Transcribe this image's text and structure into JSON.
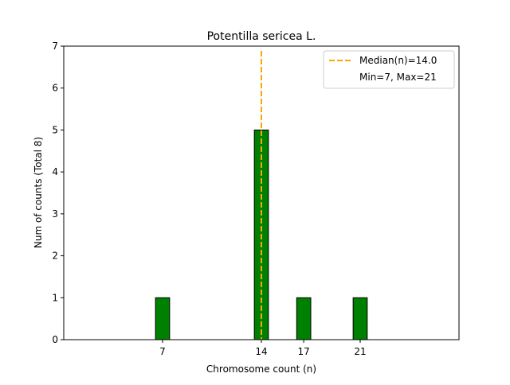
{
  "chart_data": {
    "type": "bar",
    "title": "Potentilla sericea L.",
    "xlabel": "Chromosome count (n)",
    "ylabel": "Num of counts      (Total 8)",
    "xlim": [
      0,
      28
    ],
    "ylim": [
      0,
      7
    ],
    "x_ticks": [
      7,
      14,
      17,
      21
    ],
    "y_ticks": [
      0,
      1,
      2,
      3,
      4,
      5,
      6,
      7
    ],
    "bar_width": 1,
    "bars": [
      {
        "x": 7,
        "value": 1
      },
      {
        "x": 14,
        "value": 5
      },
      {
        "x": 17,
        "value": 1
      },
      {
        "x": 21,
        "value": 1
      }
    ],
    "baseline_range": [
      4,
      24
    ],
    "median": 14.0,
    "legend": {
      "position": "top-right",
      "entries": [
        "Median(n)=14.0",
        "Min=7, Max=21"
      ]
    },
    "colors": {
      "bar_fill": "#008000",
      "bar_edge": "#000000",
      "median_line": "#FFA500",
      "axis": "#000000",
      "legend_border": "#cccccc"
    },
    "grid": false
  }
}
